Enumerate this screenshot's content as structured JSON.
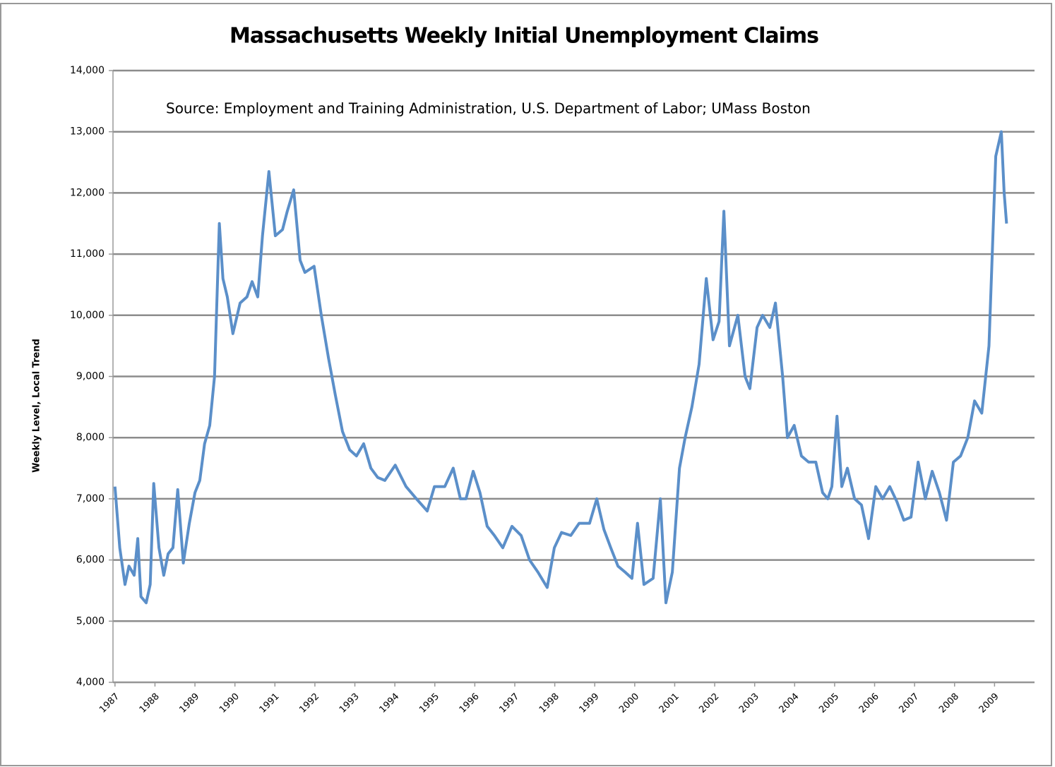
{
  "chart_data": {
    "type": "line",
    "title": "Massachusetts Weekly Initial Unemployment Claims",
    "annotation": "Source:  Employment and Training Administration, U.S. Department of Labor; UMass Boston",
    "ylabel": "Weekly Level, Local Trend",
    "x": [
      1987.0,
      1987.12,
      1987.25,
      1987.35,
      1987.48,
      1987.57,
      1987.65,
      1987.78,
      1987.88,
      1987.97,
      1988.1,
      1988.22,
      1988.33,
      1988.45,
      1988.57,
      1988.71,
      1988.86,
      1989.0,
      1989.12,
      1989.24,
      1989.37,
      1989.49,
      1989.61,
      1989.7,
      1989.81,
      1989.95,
      1990.13,
      1990.3,
      1990.43,
      1990.57,
      1990.69,
      1990.85,
      1991.01,
      1991.19,
      1991.31,
      1991.47,
      1991.63,
      1991.75,
      1991.98,
      1992.16,
      1992.34,
      1992.51,
      1992.69,
      1992.87,
      1993.04,
      1993.22,
      1993.4,
      1993.57,
      1993.75,
      1994.01,
      1994.28,
      1994.54,
      1994.81,
      1994.99,
      1995.25,
      1995.46,
      1995.64,
      1995.78,
      1995.96,
      1996.13,
      1996.31,
      1996.49,
      1996.7,
      1996.93,
      1997.16,
      1997.37,
      1997.58,
      1997.81,
      1997.99,
      1998.17,
      1998.4,
      1998.61,
      1998.87,
      1999.05,
      1999.23,
      1999.4,
      1999.58,
      1999.76,
      1999.93,
      2000.07,
      2000.23,
      2000.46,
      2000.64,
      2000.78,
      2000.94,
      2001.12,
      2001.26,
      2001.43,
      2001.61,
      2001.79,
      2001.96,
      2002.11,
      2002.23,
      2002.37,
      2002.58,
      2002.76,
      2002.88,
      2003.06,
      2003.2,
      2003.38,
      2003.52,
      2003.7,
      2003.82,
      2003.99,
      2004.17,
      2004.35,
      2004.53,
      2004.7,
      2004.83,
      2004.93,
      2005.06,
      2005.18,
      2005.32,
      2005.5,
      2005.67,
      2005.85,
      2006.03,
      2006.2,
      2006.38,
      2006.56,
      2006.73,
      2006.91,
      2007.09,
      2007.27,
      2007.44,
      2007.62,
      2007.8,
      2007.97,
      2008.15,
      2008.33,
      2008.5,
      2008.68,
      2008.86,
      2009.03,
      2009.17,
      2009.24,
      2009.3
    ],
    "series": [
      {
        "name": "Weekly Level, Local Trend",
        "color": "#5b8fc9",
        "values": [
          7200,
          6200,
          5600,
          5900,
          5750,
          6350,
          5400,
          5300,
          5600,
          7250,
          6200,
          5750,
          6100,
          6200,
          7150,
          5950,
          6600,
          7100,
          7300,
          7900,
          8200,
          9000,
          11500,
          10600,
          10300,
          9700,
          10200,
          10300,
          10550,
          10300,
          11300,
          12350,
          11300,
          11400,
          11700,
          12050,
          10900,
          10700,
          10800,
          10000,
          9300,
          8700,
          8100,
          7800,
          7700,
          7900,
          7500,
          7350,
          7300,
          7550,
          7200,
          7000,
          6800,
          7200,
          7200,
          7500,
          7000,
          7000,
          7450,
          7100,
          6550,
          6400,
          6200,
          6550,
          6400,
          6000,
          5800,
          5550,
          6200,
          6450,
          6400,
          6600,
          6600,
          7000,
          6500,
          6200,
          5900,
          5800,
          5700,
          6600,
          5600,
          5700,
          7000,
          5300,
          5800,
          7500,
          8000,
          8500,
          9200,
          10600,
          9600,
          9900,
          11700,
          9500,
          10000,
          9000,
          8800,
          9800,
          10000,
          9800,
          10200,
          9000,
          8000,
          8200,
          7700,
          7600,
          7600,
          7100,
          7000,
          7200,
          8350,
          7200,
          7500,
          7000,
          6900,
          6350,
          7200,
          7000,
          7200,
          6950,
          6650,
          6700,
          7600,
          7000,
          7450,
          7100,
          6650,
          7600,
          7700,
          8000,
          8600,
          8400,
          9500,
          12600,
          13000,
          12000,
          11500
        ]
      }
    ],
    "xlim": [
      1986.95,
      2010.0
    ],
    "xticks": [
      1987,
      1988,
      1989,
      1990,
      1991,
      1992,
      1993,
      1994,
      1995,
      1996,
      1997,
      1998,
      1999,
      2000,
      2001,
      2002,
      2003,
      2004,
      2005,
      2006,
      2007,
      2008,
      2009
    ],
    "ylim": [
      4000,
      14000
    ],
    "yticks": [
      {
        "value": 4000,
        "label": "4,000"
      },
      {
        "value": 5000,
        "label": "5,000"
      },
      {
        "value": 6000,
        "label": "6,000"
      },
      {
        "value": 7000,
        "label": "7,000"
      },
      {
        "value": 8000,
        "label": "8,000"
      },
      {
        "value": 9000,
        "label": "9,000"
      },
      {
        "value": 10000,
        "label": "10,000"
      },
      {
        "value": 11000,
        "label": "11,000"
      },
      {
        "value": 12000,
        "label": "12,000"
      },
      {
        "value": 13000,
        "label": "13,000"
      },
      {
        "value": 14000,
        "label": "14,000"
      }
    ],
    "grid": true
  }
}
